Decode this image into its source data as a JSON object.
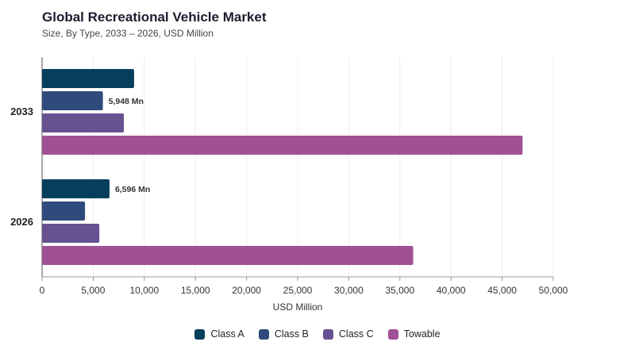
{
  "header": {
    "title": "Global Recreational Vehicle Market",
    "subtitle": "Size, By Type, 2033 – 2026, USD Million"
  },
  "chart_data": {
    "type": "bar",
    "orientation": "horizontal",
    "categories": [
      "2033",
      "2026"
    ],
    "series": [
      {
        "name": "Class A",
        "color": "#053f5c",
        "values": [
          9000,
          6596
        ]
      },
      {
        "name": "Class B",
        "color": "#2f4b7c",
        "values": [
          5948,
          4200
        ]
      },
      {
        "name": "Class C",
        "color": "#665191",
        "values": [
          8000,
          5600
        ]
      },
      {
        "name": "Towable",
        "color": "#a05195",
        "values": [
          47000,
          36300
        ]
      }
    ],
    "data_labels": [
      {
        "category": "2033",
        "series": "Class B",
        "text": "5,948 Mn"
      },
      {
        "category": "2026",
        "series": "Class A",
        "text": "6,596 Mn"
      }
    ],
    "xlabel": "USD Million",
    "ylabel": "",
    "xlim": [
      0,
      50000
    ],
    "xticks": [
      0,
      5000,
      10000,
      15000,
      20000,
      25000,
      30000,
      35000,
      40000,
      45000,
      50000
    ],
    "xtick_labels": [
      "0",
      "5,000",
      "10,000",
      "15,000",
      "20,000",
      "25,000",
      "30,000",
      "35,000",
      "40,000",
      "45,000",
      "50,000"
    ],
    "grid": true,
    "legend_position": "bottom"
  }
}
